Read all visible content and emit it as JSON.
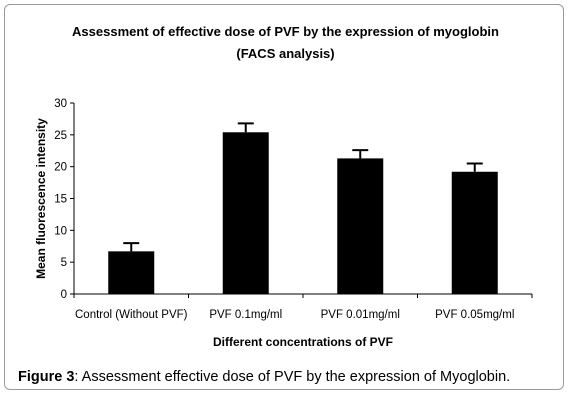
{
  "chart_data": {
    "type": "bar",
    "title": "Assessment of effective dose of PVF by the expression of myoglobin",
    "subtitle": "(FACS analysis)",
    "xlabel": "Different concentrations of PVF",
    "ylabel": "Mean fluorescence intensity",
    "ylim": [
      0,
      30
    ],
    "yticks": [
      0,
      5,
      10,
      15,
      20,
      25,
      30
    ],
    "categories": [
      "Control (Without PVF)",
      "PVF 0.1mg/ml",
      "PVF 0.01mg/ml",
      "PVF 0.05mg/ml"
    ],
    "values": [
      6.7,
      25.4,
      21.3,
      19.2
    ],
    "errors": [
      1.3,
      1.4,
      1.3,
      1.3
    ],
    "grid": false,
    "bar_color": "#000000"
  },
  "caption": {
    "label": "Figure 3",
    "text": ": Assessment effective dose of PVF by the expression of Myoglobin."
  }
}
